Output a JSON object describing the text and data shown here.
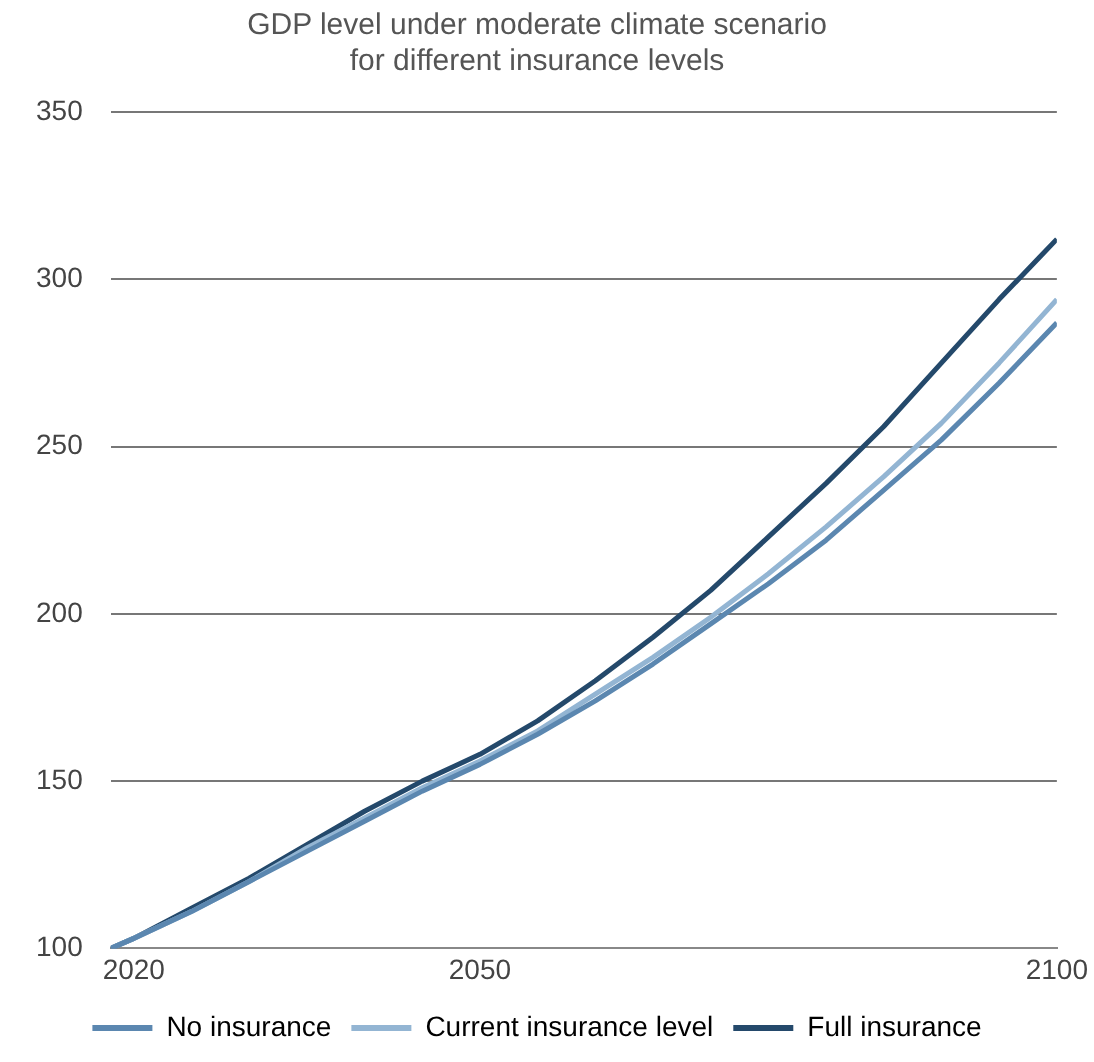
{
  "chart_data": {
    "type": "line",
    "title": "GDP level under moderate climate scenario\nfor different insurance levels",
    "x": [
      2018,
      2020,
      2025,
      2030,
      2035,
      2040,
      2045,
      2050,
      2055,
      2060,
      2065,
      2070,
      2075,
      2080,
      2085,
      2090,
      2095,
      2100
    ],
    "series": [
      {
        "name": "No insurance",
        "color": "#5b87b0",
        "values": [
          100,
          103,
          111,
          120,
          129,
          138,
          147,
          155,
          164,
          174,
          185,
          197,
          209,
          222,
          237,
          252,
          269,
          287
        ]
      },
      {
        "name": "Current insurance level",
        "color": "#93b5d3",
        "values": [
          100,
          103,
          111,
          120,
          130,
          139,
          148,
          156,
          165,
          176,
          187,
          199,
          212,
          226,
          241,
          257,
          275,
          294
        ]
      },
      {
        "name": "Full insurance",
        "color": "#24496b",
        "values": [
          100,
          103,
          112,
          121,
          131,
          141,
          150,
          158,
          168,
          180,
          193,
          207,
          223,
          239,
          256,
          275,
          294,
          312
        ]
      }
    ],
    "xlim": [
      2018,
      2100
    ],
    "xticks": [
      2020,
      2050,
      2100
    ],
    "ylim": [
      100,
      350
    ],
    "yticks": [
      100,
      150,
      200,
      250,
      300,
      350
    ],
    "grid": "y",
    "legend": "bottom",
    "marker": "none",
    "line_style": "solid"
  }
}
